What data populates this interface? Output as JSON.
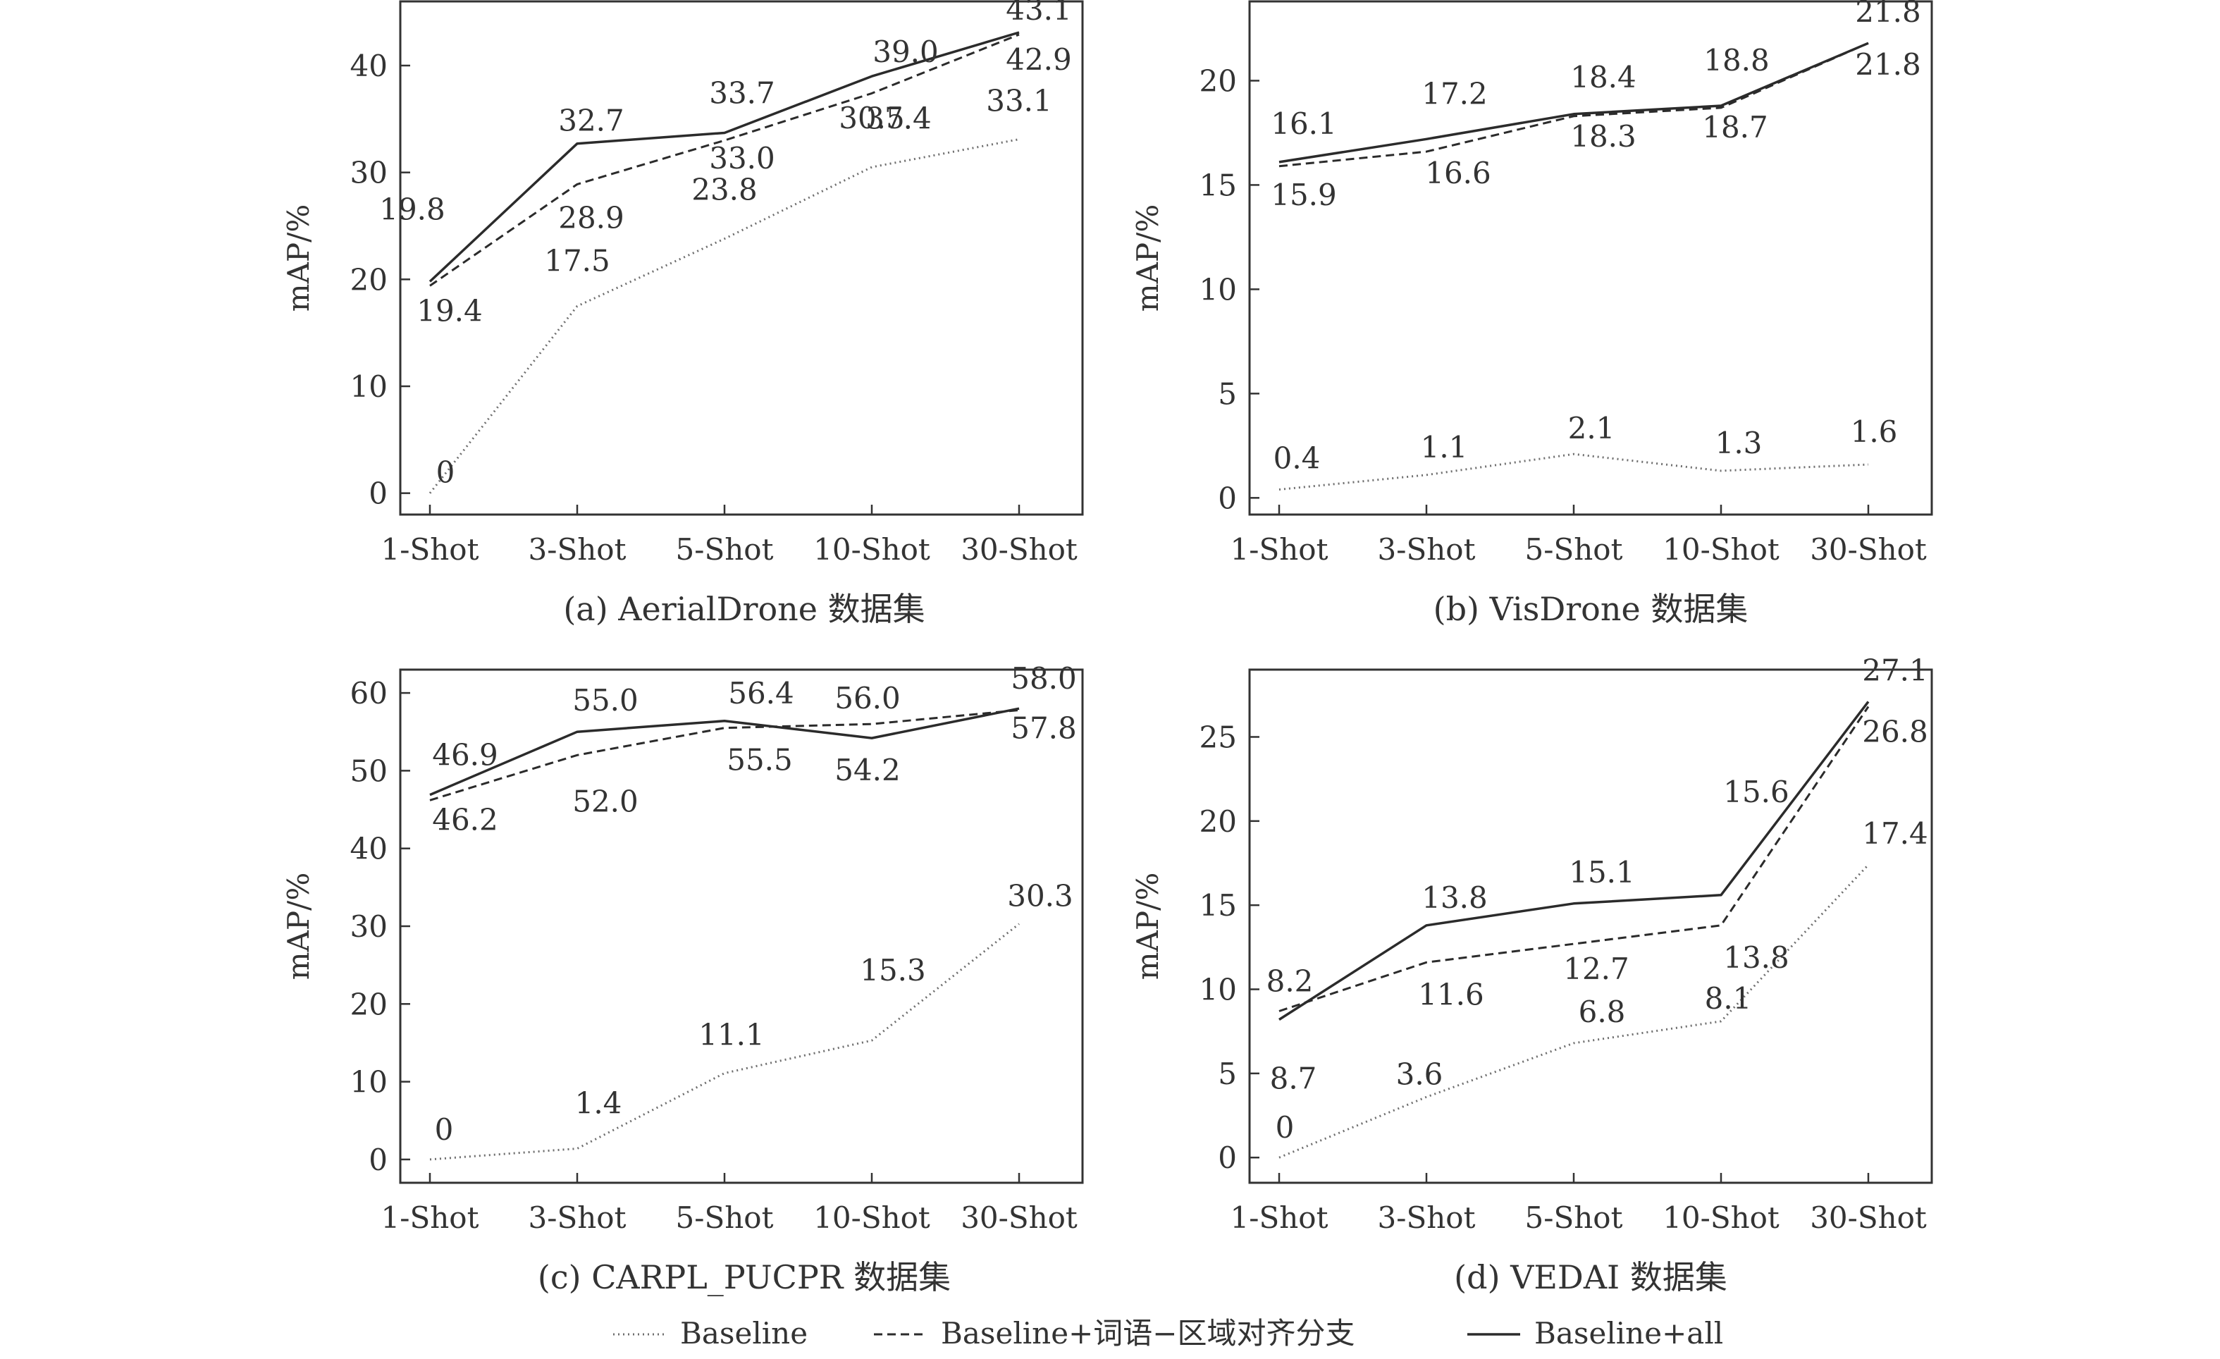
{
  "x_categories": [
    "1-Shot",
    "3-Shot",
    "5-Shot",
    "10-Shot",
    "30-Shot"
  ],
  "legend": {
    "baseline": "Baseline",
    "word_region": "Baseline+词语−区域对齐分支",
    "all": "Baseline+all"
  },
  "colors": {
    "baseline": "#6e6e6e",
    "word_region": "#2b2b2b",
    "all": "#2b2b2b",
    "axis": "#333333"
  },
  "chart_data": [
    {
      "type": "line",
      "title": "(a) AerialDrone 数据集",
      "ylabel": "mAP/%",
      "ylim": [
        -2,
        46
      ],
      "yticks": [
        0,
        10,
        20,
        30,
        40
      ],
      "categories": [
        "1-Shot",
        "3-Shot",
        "5-Shot",
        "10-Shot",
        "30-Shot"
      ],
      "series": [
        {
          "name": "Baseline",
          "style": "dotted",
          "values": [
            0,
            17.5,
            23.8,
            30.5,
            33.1
          ],
          "labels": [
            "0",
            "17.5",
            "23.8",
            "30.5",
            "33.1"
          ]
        },
        {
          "name": "Baseline+词语−区域对齐分支",
          "style": "dashed",
          "values": [
            19.4,
            28.9,
            33.0,
            37.4,
            42.9
          ],
          "labels": [
            "19.4",
            "28.9",
            "33.0",
            "37.4",
            "42.9"
          ]
        },
        {
          "name": "Baseline+all",
          "style": "solid",
          "values": [
            19.8,
            32.7,
            33.7,
            39.0,
            43.1
          ],
          "labels": [
            "19.8",
            "32.7",
            "33.7",
            "39.0",
            "43.1"
          ]
        }
      ]
    },
    {
      "type": "line",
      "title": "(b) VisDrone 数据集",
      "ylabel": "mAP/%",
      "ylim": [
        -0.8,
        23.8
      ],
      "yticks": [
        0,
        5,
        10,
        15,
        20
      ],
      "categories": [
        "1-Shot",
        "3-Shot",
        "5-Shot",
        "10-Shot",
        "30-Shot"
      ],
      "series": [
        {
          "name": "Baseline",
          "style": "dotted",
          "values": [
            0.4,
            1.1,
            2.1,
            1.3,
            1.6
          ],
          "labels": [
            "0.4",
            "1.1",
            "2.1",
            "1.3",
            "1.6"
          ]
        },
        {
          "name": "Baseline+词语−区域对齐分支",
          "style": "dashed",
          "values": [
            15.9,
            16.6,
            18.3,
            18.7,
            21.8
          ],
          "labels": [
            "15.9",
            "16.6",
            "18.3",
            "18.7",
            "21.8"
          ]
        },
        {
          "name": "Baseline+all",
          "style": "solid",
          "values": [
            16.1,
            17.2,
            18.4,
            18.8,
            21.8
          ],
          "labels": [
            "16.1",
            "17.2",
            "18.4",
            "18.8",
            "21.8"
          ]
        }
      ]
    },
    {
      "type": "line",
      "title": "(c) CARPL_PUCPR 数据集",
      "ylabel": "mAP/%",
      "ylim": [
        -3,
        63
      ],
      "yticks": [
        0,
        10,
        20,
        30,
        40,
        50,
        60
      ],
      "categories": [
        "1-Shot",
        "3-Shot",
        "5-Shot",
        "10-Shot",
        "30-Shot"
      ],
      "series": [
        {
          "name": "Baseline",
          "style": "dotted",
          "values": [
            0,
            1.4,
            11.1,
            15.3,
            30.3
          ],
          "labels": [
            "0",
            "1.4",
            "11.1",
            "15.3",
            "30.3"
          ]
        },
        {
          "name": "Baseline+词语−区域对齐分支",
          "style": "dashed",
          "values": [
            46.2,
            52.0,
            55.5,
            56.0,
            57.8
          ],
          "labels": [
            "46.2",
            "52.0",
            "55.5",
            "56.0",
            "57.8"
          ]
        },
        {
          "name": "Baseline+all",
          "style": "solid",
          "values": [
            46.9,
            55.0,
            56.4,
            54.2,
            58.0
          ],
          "labels": [
            "46.9",
            "55.0",
            "56.4",
            "54.2",
            "58.0"
          ]
        }
      ]
    },
    {
      "type": "line",
      "title": "(d) VEDAI 数据集",
      "ylabel": "mAP/%",
      "ylim": [
        -1.5,
        29
      ],
      "yticks": [
        0,
        5,
        10,
        15,
        20,
        25
      ],
      "categories": [
        "1-Shot",
        "3-Shot",
        "5-Shot",
        "10-Shot",
        "30-Shot"
      ],
      "series": [
        {
          "name": "Baseline",
          "style": "dotted",
          "values": [
            0,
            3.6,
            6.8,
            8.1,
            17.4
          ],
          "labels": [
            "0",
            "3.6",
            "6.8",
            "8.1",
            "17.4"
          ]
        },
        {
          "name": "Baseline+词语−区域对齐分支",
          "style": "dashed",
          "values": [
            8.7,
            11.6,
            12.7,
            13.8,
            26.8
          ],
          "labels": [
            "8.7",
            "11.6",
            "12.7",
            "13.8",
            "26.8"
          ]
        },
        {
          "name": "Baseline+all",
          "style": "solid",
          "values": [
            8.2,
            13.8,
            15.1,
            15.6,
            27.1
          ],
          "labels": [
            "8.2",
            "13.8",
            "15.1",
            "15.6",
            "27.1"
          ]
        }
      ]
    }
  ]
}
